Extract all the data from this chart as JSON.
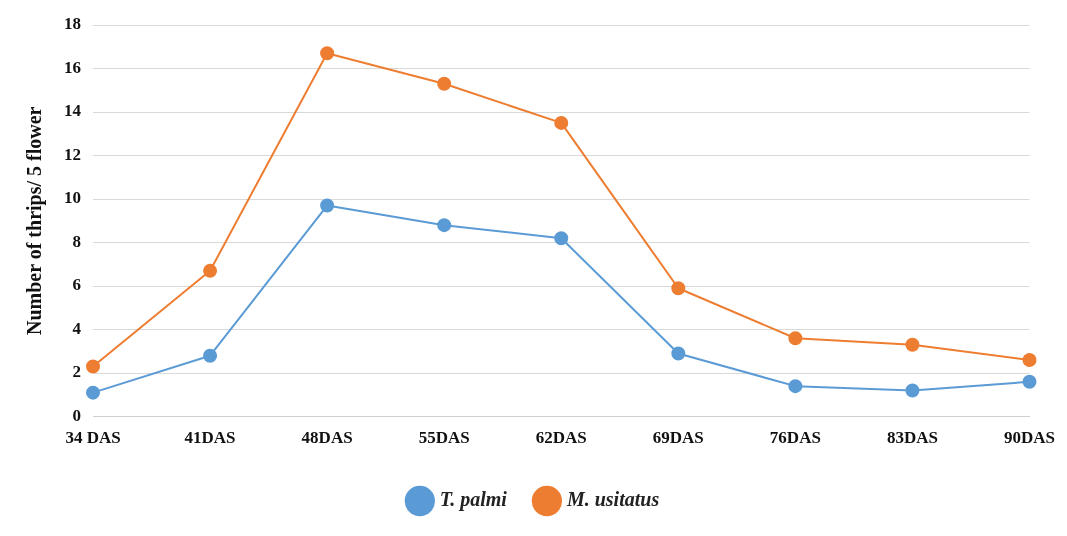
{
  "chart_data": {
    "type": "line",
    "ylabel": "Number of thrips/ 5 flower",
    "categories": [
      "34 DAS",
      "41DAS",
      "48DAS",
      "55DAS",
      "62DAS",
      "69DAS",
      "76DAS",
      "83DAS",
      "90DAS"
    ],
    "series": [
      {
        "name": "T. palmi",
        "color": "#5b9bd5",
        "values": [
          1.1,
          2.8,
          9.7,
          8.8,
          8.2,
          2.9,
          1.4,
          1.2,
          1.6
        ]
      },
      {
        "name": "M. usitatus",
        "color": "#ed7d31",
        "values": [
          2.3,
          6.7,
          16.7,
          15.3,
          13.5,
          5.9,
          3.6,
          3.3,
          2.6
        ]
      }
    ],
    "ylim": [
      0,
      18
    ],
    "yticks": [
      0,
      2,
      4,
      6,
      8,
      10,
      12,
      14,
      16,
      18
    ],
    "grid": "y",
    "legend": "bottom",
    "marker": "circle",
    "line_style": "solid"
  }
}
